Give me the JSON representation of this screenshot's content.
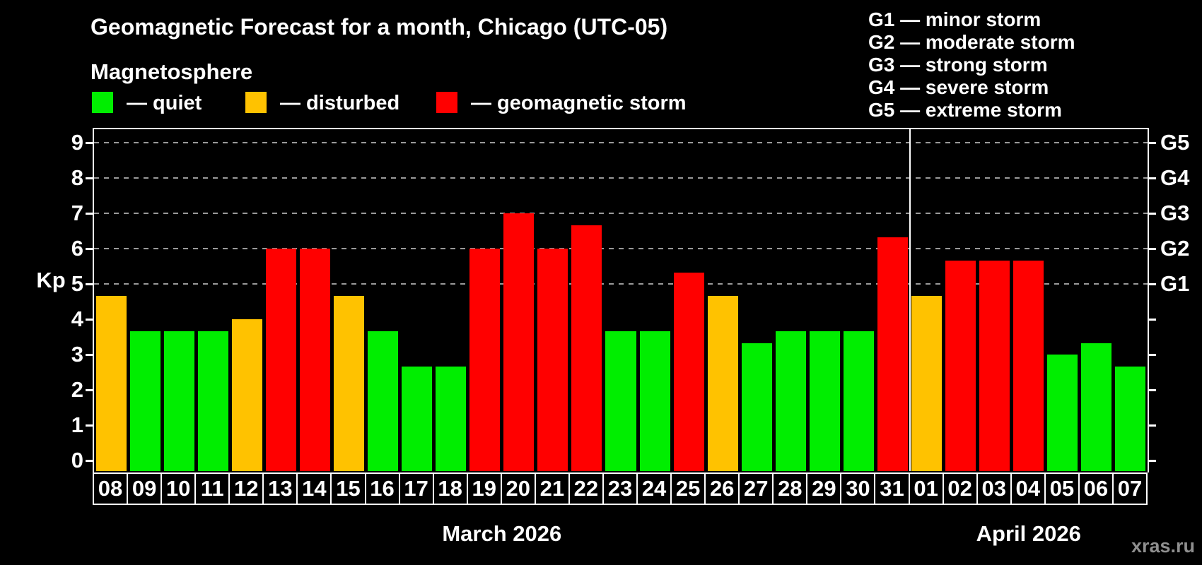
{
  "title": "Geomagnetic Forecast for a month, Chicago (UTC-05)",
  "subtitle": "Magnetosphere",
  "legend": {
    "quiet_label": "— quiet",
    "disturbed_label": "— disturbed",
    "storm_label": "— geomagnetic storm"
  },
  "g_legend": [
    "G1 — minor storm",
    "G2 — moderate storm",
    "G3 — strong storm",
    "G4 — severe storm",
    "G5 — extreme storm"
  ],
  "axes": {
    "y_label": "Kp",
    "y_ticks": [
      0,
      1,
      2,
      3,
      4,
      5,
      6,
      7,
      8,
      9
    ],
    "right_axis_labels": [
      {
        "kp": 5,
        "label": "G1"
      },
      {
        "kp": 6,
        "label": "G2"
      },
      {
        "kp": 7,
        "label": "G3"
      },
      {
        "kp": 8,
        "label": "G4"
      },
      {
        "kp": 9,
        "label": "G5"
      }
    ],
    "grid_levels": [
      5,
      6,
      7,
      8,
      9
    ]
  },
  "chart_data": {
    "type": "bar",
    "title": "Geomagnetic Forecast for a month, Chicago (UTC-05)",
    "xlabel": "",
    "ylabel": "Kp",
    "ylim": [
      0,
      9
    ],
    "grid": "dashed horizontal at Kp 5-9 only",
    "legend_position": "top-left",
    "categories": [
      "08",
      "09",
      "10",
      "11",
      "12",
      "13",
      "14",
      "15",
      "16",
      "17",
      "18",
      "19",
      "20",
      "21",
      "22",
      "23",
      "24",
      "25",
      "26",
      "27",
      "28",
      "29",
      "30",
      "31",
      "01",
      "02",
      "03",
      "04",
      "05",
      "06",
      "07"
    ],
    "values": [
      4.67,
      3.67,
      3.67,
      3.67,
      4.0,
      6.0,
      6.0,
      4.67,
      3.67,
      2.67,
      2.67,
      6.0,
      7.0,
      6.0,
      6.67,
      3.67,
      3.67,
      5.33,
      4.67,
      3.33,
      3.67,
      3.67,
      3.67,
      6.33,
      4.67,
      5.67,
      5.67,
      5.67,
      3.0,
      3.33,
      2.67
    ],
    "states": [
      "disturbed",
      "quiet",
      "quiet",
      "quiet",
      "disturbed",
      "storm",
      "storm",
      "disturbed",
      "quiet",
      "quiet",
      "quiet",
      "storm",
      "storm",
      "storm",
      "storm",
      "quiet",
      "quiet",
      "storm",
      "disturbed",
      "quiet",
      "quiet",
      "quiet",
      "quiet",
      "storm",
      "disturbed",
      "storm",
      "storm",
      "storm",
      "quiet",
      "quiet",
      "quiet"
    ],
    "state_thresholds": {
      "disturbed_min": 4,
      "storm_min": 5
    },
    "months": [
      {
        "label": "March 2026",
        "count": 24
      },
      {
        "label": "April 2026",
        "count": 7
      }
    ]
  },
  "watermark": "xras.ru",
  "colors": {
    "background": "#000000",
    "quiet": "#00ee00",
    "disturbed": "#ffc200",
    "storm": "#ff0000",
    "axis": "#ffffff",
    "grid": "#9a9a9a",
    "text": "#ffffff",
    "watermark": "#8f8f8f"
  }
}
